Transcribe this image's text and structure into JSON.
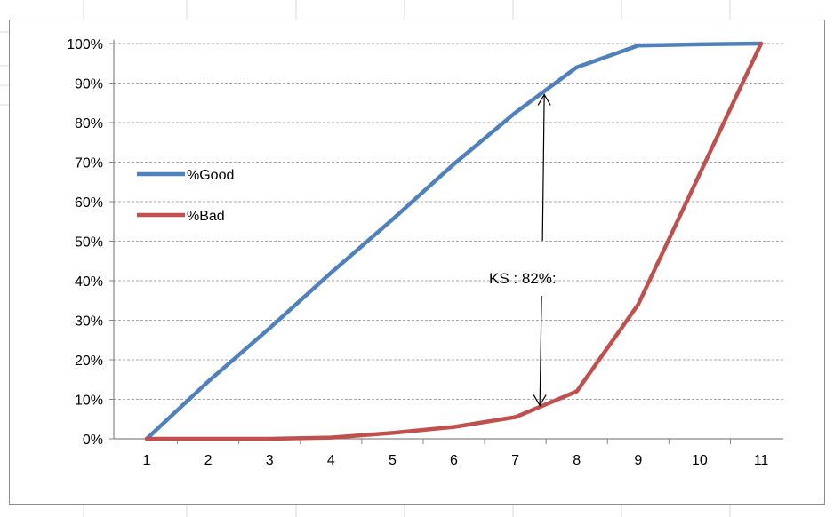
{
  "chart_data": {
    "type": "line",
    "title": "",
    "xlabel": "",
    "ylabel": "",
    "categories": [
      "1",
      "2",
      "3",
      "4",
      "5",
      "6",
      "7",
      "8",
      "9",
      "10",
      "11"
    ],
    "x": [
      1,
      2,
      3,
      4,
      5,
      6,
      7,
      7.5,
      8,
      9,
      10,
      11
    ],
    "ylim": [
      0,
      1
    ],
    "y_ticks": [
      "0%",
      "10%",
      "20%",
      "30%",
      "40%",
      "50%",
      "60%",
      "70%",
      "80%",
      "90%",
      "100%"
    ],
    "y_tick_values": [
      0,
      0.1,
      0.2,
      0.3,
      0.4,
      0.5,
      0.6,
      0.7,
      0.8,
      0.9,
      1.0
    ],
    "grid": "horizontal dashed",
    "legend_position": "left-middle",
    "series": [
      {
        "name": "%Good",
        "color": "#4f81bd",
        "x": [
          1,
          2,
          3,
          4,
          5,
          6,
          7,
          8,
          9,
          10,
          11
        ],
        "values": [
          0.0,
          0.145,
          0.28,
          0.42,
          0.555,
          0.695,
          0.825,
          0.94,
          0.995,
          0.998,
          1.0
        ]
      },
      {
        "name": "%Bad",
        "color": "#c0504d",
        "x": [
          1,
          2,
          3,
          4,
          5,
          6,
          7,
          8,
          9,
          10,
          11
        ],
        "values": [
          0.0,
          0.0,
          0.0,
          0.003,
          0.015,
          0.03,
          0.055,
          0.12,
          0.34,
          0.67,
          1.0
        ]
      }
    ],
    "annotation": {
      "text": "KS : 82%:",
      "x": 7.5,
      "y_top": 0.88,
      "y_bottom": 0.08
    }
  }
}
